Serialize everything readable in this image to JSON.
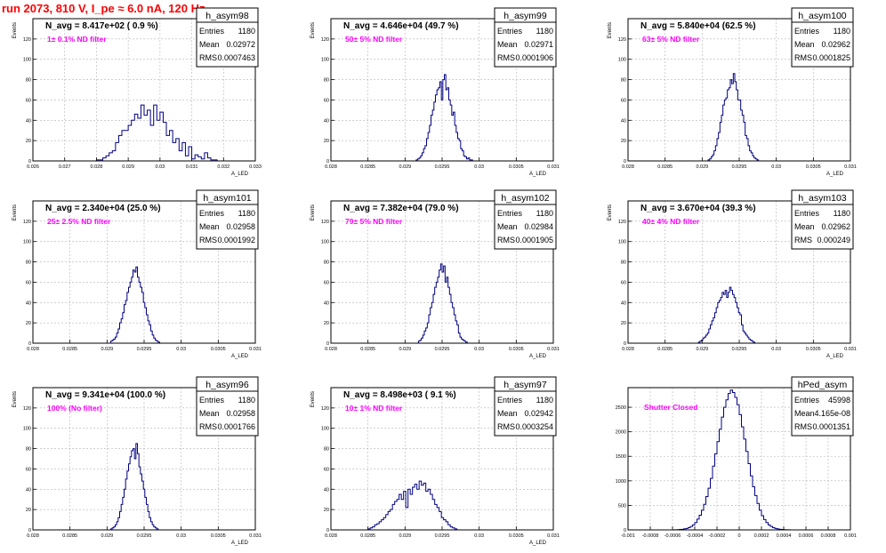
{
  "title": "run 2073,   810 V, I_pe ≈ 6.0 nA, 120 Hz",
  "colors": {
    "hist": "#000080",
    "annotation": "#ff00ff",
    "title": "#ff0000",
    "grid": "#b4b4b4"
  },
  "chart_data": [
    {
      "type": "histogram",
      "name": "h_asym98",
      "navg": "N_avg = 8.417e+02 ( 0.9 %)",
      "filter": "1± 0.1% ND filter",
      "stats": {
        "entries": "1180",
        "mean": "0.02972",
        "rms": "0.0007463"
      },
      "xlabel": "A_LED",
      "ylabel": "Events",
      "xlim": [
        0.026,
        0.033
      ],
      "ylim": [
        0,
        140
      ],
      "xticks": [
        "0.026",
        "0.027",
        "0.028",
        "0.029",
        "0.03",
        "0.031",
        "0.032",
        "0.033"
      ],
      "xtick_values": [
        0.026,
        0.027,
        0.028,
        0.029,
        0.03,
        0.031,
        0.032,
        0.033
      ],
      "yticks": [
        "0",
        "20",
        "40",
        "60",
        "80",
        "100",
        "120"
      ],
      "ytick_values": [
        0,
        20,
        40,
        60,
        80,
        100,
        120
      ],
      "bin_start": 0.028,
      "bin_width": 0.0001,
      "counts": [
        1,
        1,
        3,
        5,
        8,
        10,
        18,
        25,
        30,
        30,
        35,
        40,
        46,
        42,
        55,
        45,
        50,
        35,
        55,
        40,
        48,
        38,
        25,
        30,
        18,
        22,
        10,
        18,
        5,
        14,
        2,
        6,
        4,
        2,
        8,
        3,
        1,
        1
      ]
    },
    {
      "type": "histogram",
      "name": "h_asym99",
      "navg": "N_avg = 4.646e+04 (49.7 %)",
      "filter": "50± 5% ND filter",
      "stats": {
        "entries": "1180",
        "mean": "0.02971",
        "rms": "0.0001906"
      },
      "xlabel": "A_LED",
      "ylabel": "Events",
      "xlim": [
        0.028,
        0.031
      ],
      "ylim": [
        0,
        140
      ],
      "xticks": [
        "0.028",
        "0.0285",
        "0.029",
        "0.0295",
        "0.03",
        "0.0305",
        "0.031"
      ],
      "xtick_values": [
        0.028,
        0.0285,
        0.029,
        0.0295,
        0.03,
        0.0305,
        0.031
      ],
      "yticks": [
        "0",
        "20",
        "40",
        "60",
        "80",
        "100",
        "120"
      ],
      "ytick_values": [
        0,
        20,
        40,
        60,
        80,
        100,
        120
      ],
      "bin_start": 0.02915,
      "bin_width": 2e-05,
      "counts": [
        1,
        2,
        3,
        5,
        8,
        12,
        15,
        22,
        28,
        35,
        45,
        50,
        58,
        65,
        70,
        72,
        78,
        60,
        80,
        85,
        70,
        72,
        60,
        55,
        45,
        48,
        35,
        28,
        22,
        20,
        12,
        10,
        5,
        4,
        2,
        3,
        1,
        1
      ]
    },
    {
      "type": "histogram",
      "name": "h_asym100",
      "navg": "N_avg = 5.840e+04 (62.5 %)",
      "filter": "63± 5% ND filter",
      "stats": {
        "entries": "1180",
        "mean": "0.02962",
        "rms": "0.0001825"
      },
      "xlabel": "A_LED",
      "ylabel": "Events",
      "xlim": [
        0.028,
        0.031
      ],
      "ylim": [
        0,
        140
      ],
      "xticks": [
        "0.028",
        "0.0285",
        "0.029",
        "0.0295",
        "0.03",
        "0.0305",
        "0.031"
      ],
      "xtick_values": [
        0.028,
        0.0285,
        0.029,
        0.0295,
        0.03,
        0.0305,
        0.031
      ],
      "yticks": [
        "0",
        "20",
        "40",
        "60",
        "80",
        "100",
        "120"
      ],
      "ytick_values": [
        0,
        20,
        40,
        60,
        80,
        100,
        120
      ],
      "bin_start": 0.02908,
      "bin_width": 2e-05,
      "counts": [
        1,
        2,
        4,
        6,
        10,
        15,
        22,
        28,
        38,
        45,
        55,
        60,
        62,
        70,
        72,
        80,
        76,
        86,
        78,
        70,
        60,
        60,
        50,
        45,
        38,
        25,
        22,
        15,
        10,
        8,
        5,
        3,
        2,
        1
      ]
    },
    {
      "type": "histogram",
      "name": "h_asym101",
      "navg": "N_avg = 2.340e+04 (25.0 %)",
      "filter": "25± 2.5% ND filter",
      "stats": {
        "entries": "1180",
        "mean": "0.02958",
        "rms": "0.0001992"
      },
      "xlabel": "A_LED",
      "ylabel": "Events",
      "xlim": [
        0.028,
        0.031
      ],
      "ylim": [
        0,
        140
      ],
      "xticks": [
        "0.028",
        "0.0285",
        "0.029",
        "0.0295",
        "0.03",
        "0.0305",
        "0.031"
      ],
      "xtick_values": [
        0.028,
        0.0285,
        0.029,
        0.0295,
        0.03,
        0.0305,
        0.031
      ],
      "yticks": [
        "0",
        "20",
        "40",
        "60",
        "80",
        "100",
        "120"
      ],
      "ytick_values": [
        0,
        20,
        40,
        60,
        80,
        100,
        120
      ],
      "bin_start": 0.02905,
      "bin_width": 2e-05,
      "counts": [
        2,
        3,
        4,
        6,
        10,
        14,
        20,
        24,
        30,
        38,
        42,
        50,
        55,
        60,
        65,
        72,
        70,
        75,
        65,
        60,
        55,
        50,
        40,
        35,
        28,
        22,
        18,
        12,
        8,
        5,
        3,
        2,
        1
      ]
    },
    {
      "type": "histogram",
      "name": "h_asym102",
      "navg": "N_avg = 7.382e+04 (79.0 %)",
      "filter": "79± 5% ND filter",
      "stats": {
        "entries": "1180",
        "mean": "0.02984",
        "rms": "0.0001905"
      },
      "xlabel": "A_LED",
      "ylabel": "Events",
      "xlim": [
        0.028,
        0.031
      ],
      "ylim": [
        0,
        140
      ],
      "xticks": [
        "0.028",
        "0.0285",
        "0.029",
        "0.0295",
        "0.03",
        "0.0305",
        "0.031"
      ],
      "xtick_values": [
        0.028,
        0.0285,
        0.029,
        0.0295,
        0.03,
        0.0305,
        0.031
      ],
      "yticks": [
        "0",
        "20",
        "40",
        "60",
        "80",
        "100",
        "120"
      ],
      "ytick_values": [
        0,
        20,
        40,
        60,
        80,
        100,
        120
      ],
      "bin_start": 0.02918,
      "bin_width": 2e-05,
      "counts": [
        2,
        3,
        5,
        8,
        12,
        15,
        20,
        28,
        35,
        40,
        48,
        55,
        60,
        65,
        72,
        78,
        70,
        76,
        60,
        65,
        55,
        48,
        40,
        35,
        28,
        22,
        18,
        10,
        6,
        4,
        3,
        2,
        1
      ]
    },
    {
      "type": "histogram",
      "name": "h_asym103",
      "navg": "N_avg = 3.670e+04 (39.3 %)",
      "filter": "40± 4% ND filter",
      "stats": {
        "entries": "1180",
        "mean": "0.02962",
        "rms": "0.000249"
      },
      "xlabel": "A_LED",
      "ylabel": "Events",
      "xlim": [
        0.028,
        0.031
      ],
      "ylim": [
        0,
        140
      ],
      "xticks": [
        "0.028",
        "0.0285",
        "0.029",
        "0.0295",
        "0.03",
        "0.0305",
        "0.031"
      ],
      "xtick_values": [
        0.028,
        0.0285,
        0.029,
        0.0295,
        0.03,
        0.0305,
        0.031
      ],
      "yticks": [
        "0",
        "20",
        "40",
        "60",
        "80",
        "100",
        "120"
      ],
      "ytick_values": [
        0,
        20,
        40,
        60,
        80,
        100,
        120
      ],
      "bin_start": 0.02895,
      "bin_width": 2e-05,
      "counts": [
        1,
        2,
        3,
        5,
        6,
        8,
        10,
        14,
        18,
        22,
        25,
        30,
        35,
        40,
        42,
        45,
        50,
        48,
        52,
        45,
        50,
        55,
        52,
        48,
        45,
        40,
        35,
        30,
        28,
        18,
        12,
        10,
        8,
        6,
        4,
        3,
        2,
        1
      ]
    },
    {
      "type": "histogram",
      "name": "h_asym96",
      "navg": "N_avg = 9.341e+04 (100.0 %)",
      "filter": "100% (No filter)",
      "stats": {
        "entries": "1180",
        "mean": "0.02958",
        "rms": "0.0001766"
      },
      "xlabel": "A_LED",
      "ylabel": "Events",
      "xlim": [
        0.028,
        0.031
      ],
      "ylim": [
        0,
        140
      ],
      "xticks": [
        "0.028",
        "0.0285",
        "0.029",
        "0.0295",
        "0.03",
        "0.0305",
        "0.031"
      ],
      "xtick_values": [
        0.028,
        0.0285,
        0.029,
        0.0295,
        0.03,
        0.0305,
        0.031
      ],
      "yticks": [
        "0",
        "20",
        "40",
        "60",
        "80",
        "100",
        "120"
      ],
      "ytick_values": [
        0,
        20,
        40,
        60,
        80,
        100,
        120
      ],
      "bin_start": 0.02905,
      "bin_width": 2e-05,
      "counts": [
        1,
        2,
        3,
        5,
        8,
        12,
        18,
        25,
        32,
        40,
        50,
        58,
        65,
        72,
        78,
        80,
        70,
        85,
        75,
        62,
        55,
        48,
        40,
        32,
        25,
        18,
        12,
        8,
        5,
        3,
        2,
        1
      ]
    },
    {
      "type": "histogram",
      "name": "h_asym97",
      "navg": "N_avg = 8.498e+03 ( 9.1 %)",
      "filter": "10± 1% ND filter",
      "stats": {
        "entries": "1180",
        "mean": "0.02942",
        "rms": "0.0003254"
      },
      "xlabel": "A_LED",
      "ylabel": "Events",
      "xlim": [
        0.028,
        0.031
      ],
      "ylim": [
        0,
        140
      ],
      "xticks": [
        "0.028",
        "0.0285",
        "0.029",
        "0.0295",
        "0.03",
        "0.0305",
        "0.031"
      ],
      "xtick_values": [
        0.028,
        0.0285,
        0.029,
        0.0295,
        0.03,
        0.0305,
        0.031
      ],
      "yticks": [
        "0",
        "20",
        "40",
        "60",
        "80",
        "100",
        "120"
      ],
      "ytick_values": [
        0,
        20,
        40,
        60,
        80,
        100,
        120
      ],
      "bin_start": 0.0285,
      "bin_width": 3e-05,
      "counts": [
        1,
        2,
        3,
        5,
        6,
        8,
        10,
        12,
        15,
        18,
        20,
        25,
        28,
        30,
        35,
        30,
        38,
        22,
        40,
        35,
        42,
        45,
        40,
        48,
        44,
        46,
        38,
        40,
        35,
        30,
        25,
        22,
        18,
        12,
        10,
        8,
        5,
        3,
        2,
        1
      ]
    },
    {
      "type": "histogram",
      "name": "hPed_asym",
      "navg": "",
      "filter": "Shutter Closed",
      "stats": {
        "entries": "45998",
        "mean": "4.165e-08",
        "rms": "0.0001351"
      },
      "xlabel": "",
      "ylabel": "",
      "xlim": [
        -0.001,
        0.001
      ],
      "ylim": [
        0,
        2900
      ],
      "xticks": [
        "-0.001",
        "-0.0008",
        "-0.0006",
        "-0.0004",
        "-0.0002",
        "0",
        "0.0002",
        "0.0004",
        "0.0006",
        "0.0008",
        "0.001"
      ],
      "xtick_values": [
        -0.001,
        -0.0008,
        -0.0006,
        -0.0004,
        -0.0002,
        0,
        0.0002,
        0.0004,
        0.0006,
        0.0008,
        0.001
      ],
      "yticks": [
        "0",
        "500",
        "1000",
        "1500",
        "2000",
        "2500"
      ],
      "ytick_values": [
        0,
        500,
        1000,
        1500,
        2000,
        2500
      ],
      "bin_start": -0.0006,
      "bin_width": 2e-05,
      "counts": [
        2,
        3,
        5,
        8,
        12,
        20,
        30,
        45,
        70,
        100,
        150,
        220,
        300,
        400,
        520,
        680,
        850,
        1050,
        1300,
        1550,
        1800,
        2050,
        2300,
        2500,
        2650,
        2780,
        2850,
        2800,
        2700,
        2550,
        2350,
        2100,
        1850,
        1600,
        1350,
        1100,
        880,
        700,
        540,
        400,
        290,
        210,
        150,
        100,
        70,
        45,
        30,
        20,
        12,
        8,
        5,
        3,
        2
      ]
    }
  ]
}
